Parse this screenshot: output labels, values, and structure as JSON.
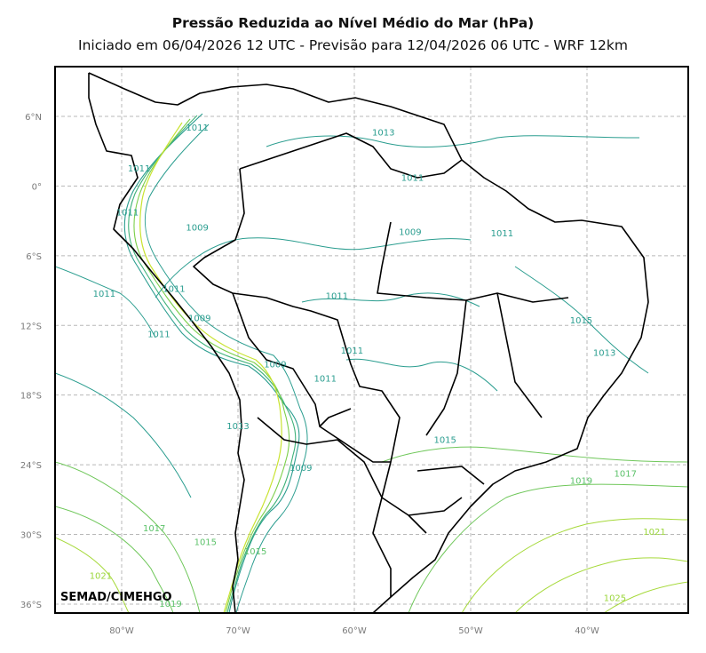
{
  "title": "Pressão Reduzida ao Nível Médio do Mar (hPa)",
  "subtitle": "Iniciado em 06/04/2026 12 UTC - Previsão para 12/04/2026 06 UTC - WRF 12km",
  "credit": "SEMAD/CIMEHGO",
  "lat_ticks": [
    "6°N",
    "0°",
    "6°S",
    "12°S",
    "18°S",
    "24°S",
    "30°S",
    "36°S"
  ],
  "lon_ticks": [
    "80°W",
    "70°W",
    "60°W",
    "50°W",
    "40°W"
  ],
  "colors": {
    "low": "#2a9d8f",
    "mid": "#5cc26a",
    "high": "#9ad63a",
    "peak": "#d6e82a",
    "border": "#000000",
    "grid": "#b8b8b8"
  },
  "contour_labels": [
    {
      "text": "1011",
      "lon": -73.5,
      "lat": 5.0,
      "level": "low"
    },
    {
      "text": "1013",
      "lon": -57.5,
      "lat": 4.6,
      "level": "low"
    },
    {
      "text": "1011",
      "lon": -78.5,
      "lat": 1.5,
      "level": "low"
    },
    {
      "text": "1011",
      "lon": -55.0,
      "lat": 0.7,
      "level": "low"
    },
    {
      "text": "1011",
      "lon": -79.5,
      "lat": -2.3,
      "level": "low"
    },
    {
      "text": "1009",
      "lon": -73.5,
      "lat": -3.6,
      "level": "low"
    },
    {
      "text": "1009",
      "lon": -55.2,
      "lat": -4.0,
      "level": "low"
    },
    {
      "text": "1011",
      "lon": -47.3,
      "lat": -4.1,
      "level": "low"
    },
    {
      "text": "1011",
      "lon": -81.5,
      "lat": -9.3,
      "level": "low"
    },
    {
      "text": "1011",
      "lon": -75.5,
      "lat": -8.9,
      "level": "low"
    },
    {
      "text": "1011",
      "lon": -61.5,
      "lat": -9.5,
      "level": "low"
    },
    {
      "text": "1009",
      "lon": -73.3,
      "lat": -11.4,
      "level": "low"
    },
    {
      "text": "1015",
      "lon": -40.5,
      "lat": -11.6,
      "level": "low"
    },
    {
      "text": "1011",
      "lon": -76.8,
      "lat": -12.8,
      "level": "low"
    },
    {
      "text": "1011",
      "lon": -60.2,
      "lat": -14.2,
      "level": "low"
    },
    {
      "text": "1013",
      "lon": -38.5,
      "lat": -14.4,
      "level": "low"
    },
    {
      "text": "1009",
      "lon": -66.8,
      "lat": -15.4,
      "level": "low"
    },
    {
      "text": "1011",
      "lon": -62.5,
      "lat": -16.6,
      "level": "low"
    },
    {
      "text": "1013",
      "lon": -70.0,
      "lat": -20.7,
      "level": "low"
    },
    {
      "text": "1015",
      "lon": -52.2,
      "lat": -21.9,
      "level": "low"
    },
    {
      "text": "1009",
      "lon": -64.6,
      "lat": -24.3,
      "level": "low"
    },
    {
      "text": "1017",
      "lon": -36.7,
      "lat": -24.8,
      "level": "mid"
    },
    {
      "text": "1019",
      "lon": -40.5,
      "lat": -25.4,
      "level": "mid"
    },
    {
      "text": "1017",
      "lon": -77.2,
      "lat": -29.5,
      "level": "mid"
    },
    {
      "text": "1021",
      "lon": -34.2,
      "lat": -29.8,
      "level": "high"
    },
    {
      "text": "1015",
      "lon": -72.8,
      "lat": -30.7,
      "level": "mid"
    },
    {
      "text": "1015",
      "lon": -68.5,
      "lat": -31.5,
      "level": "mid"
    },
    {
      "text": "1021",
      "lon": -81.8,
      "lat": -33.6,
      "level": "high"
    },
    {
      "text": "1019",
      "lon": -75.8,
      "lat": -36.0,
      "level": "mid"
    },
    {
      "text": "1025",
      "lon": -37.6,
      "lat": -35.5,
      "level": "high"
    }
  ]
}
